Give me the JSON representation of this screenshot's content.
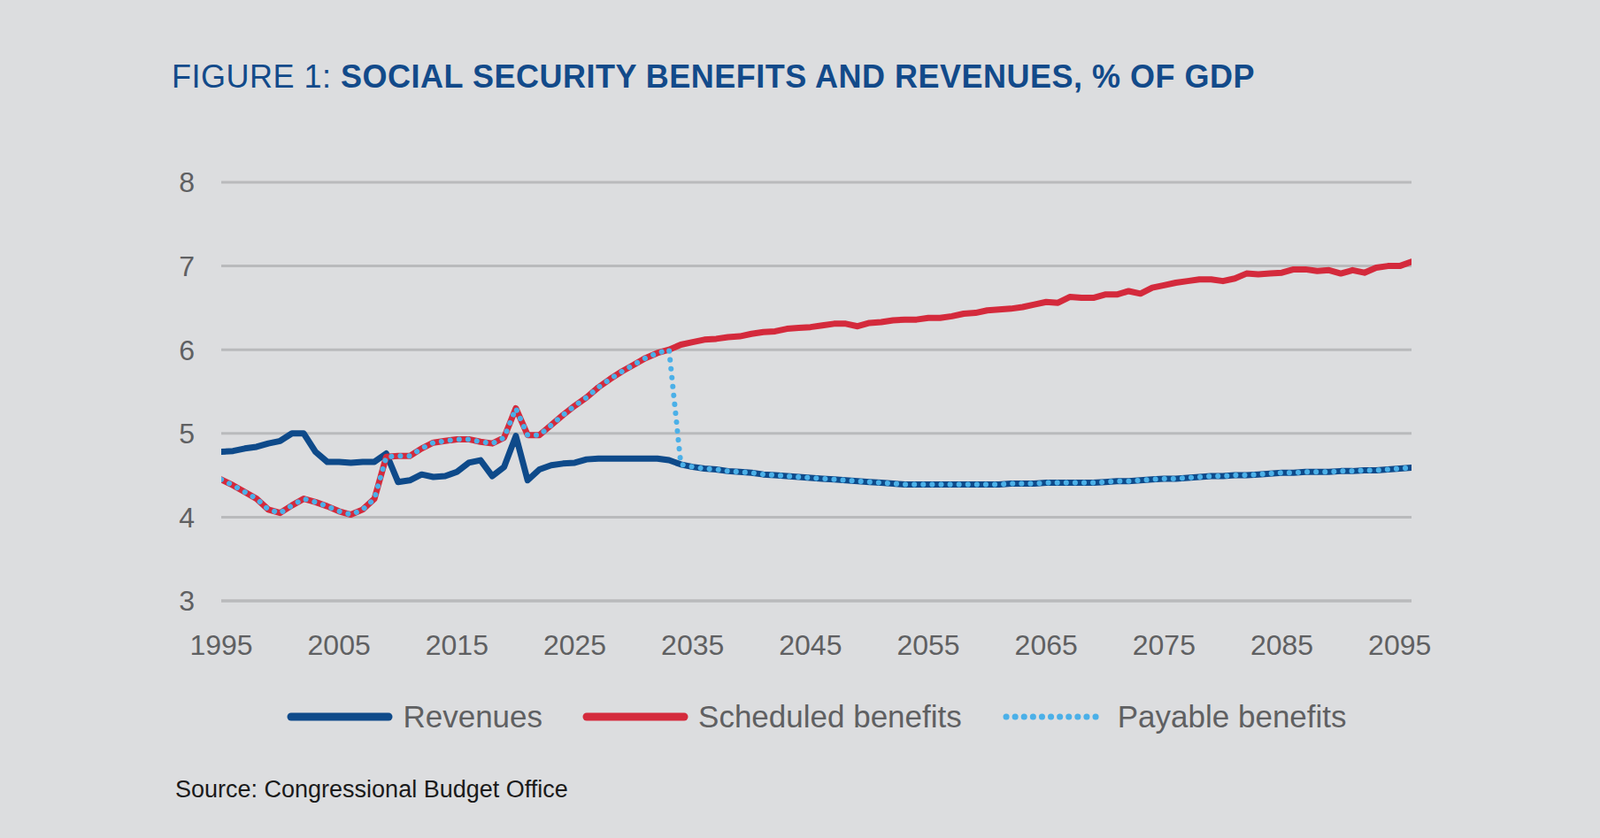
{
  "chart_data": {
    "type": "line",
    "title": "FIGURE 1: SOCIAL SECURITY BENEFITS AND REVENUES, % OF GDP",
    "source": "Source: Congressional Budget Office",
    "x": [
      1995,
      1996,
      1997,
      1998,
      1999,
      2000,
      2001,
      2002,
      2003,
      2004,
      2005,
      2006,
      2007,
      2008,
      2009,
      2010,
      2011,
      2012,
      2013,
      2014,
      2015,
      2016,
      2017,
      2018,
      2019,
      2020,
      2021,
      2022,
      2023,
      2024,
      2025,
      2026,
      2027,
      2028,
      2029,
      2030,
      2031,
      2032,
      2033,
      2034,
      2035,
      2036,
      2037,
      2038,
      2039,
      2040,
      2041,
      2042,
      2043,
      2044,
      2045,
      2046,
      2047,
      2048,
      2049,
      2050,
      2051,
      2052,
      2053,
      2054,
      2055,
      2056,
      2057,
      2058,
      2059,
      2060,
      2061,
      2062,
      2063,
      2064,
      2065,
      2066,
      2067,
      2068,
      2069,
      2070,
      2071,
      2072,
      2073,
      2074,
      2075,
      2076,
      2077,
      2078,
      2079,
      2080,
      2081,
      2082,
      2083,
      2084,
      2085,
      2086,
      2087,
      2088,
      2089,
      2090,
      2091,
      2092,
      2093,
      2094,
      2095,
      2096
    ],
    "series": [
      {
        "name": "Revenues",
        "color": "#0e4a8a",
        "line_style": "solid",
        "values": [
          4.78,
          4.79,
          4.82,
          4.84,
          4.88,
          4.91,
          5.0,
          5.0,
          4.78,
          4.66,
          4.66,
          4.65,
          4.66,
          4.66,
          4.76,
          4.42,
          4.44,
          4.51,
          4.48,
          4.49,
          4.54,
          4.65,
          4.68,
          4.49,
          4.6,
          4.97,
          4.44,
          4.57,
          4.62,
          4.64,
          4.65,
          4.69,
          4.7,
          4.7,
          4.7,
          4.7,
          4.7,
          4.7,
          4.68,
          4.63,
          4.6,
          4.58,
          4.57,
          4.55,
          4.54,
          4.53,
          4.51,
          4.5,
          4.49,
          4.48,
          4.47,
          4.46,
          4.45,
          4.44,
          4.43,
          4.42,
          4.41,
          4.4,
          4.39,
          4.39,
          4.39,
          4.39,
          4.39,
          4.39,
          4.39,
          4.39,
          4.39,
          4.4,
          4.4,
          4.4,
          4.41,
          4.41,
          4.41,
          4.41,
          4.41,
          4.42,
          4.43,
          4.43,
          4.44,
          4.45,
          4.46,
          4.46,
          4.47,
          4.48,
          4.49,
          4.49,
          4.5,
          4.5,
          4.51,
          4.52,
          4.53,
          4.53,
          4.54,
          4.54,
          4.54,
          4.55,
          4.55,
          4.56,
          4.56,
          4.57,
          4.58,
          4.59
        ]
      },
      {
        "name": "Scheduled benefits",
        "color": "#d42a3c",
        "line_style": "solid",
        "values": [
          4.45,
          4.38,
          4.3,
          4.22,
          4.09,
          4.05,
          4.14,
          4.22,
          4.18,
          4.13,
          4.07,
          4.03,
          4.09,
          4.22,
          4.72,
          4.73,
          4.73,
          4.82,
          4.89,
          4.91,
          4.93,
          4.93,
          4.9,
          4.88,
          4.95,
          5.3,
          4.98,
          4.98,
          5.1,
          5.22,
          5.33,
          5.43,
          5.55,
          5.65,
          5.74,
          5.82,
          5.9,
          5.96,
          6.0,
          6.06,
          6.09,
          6.12,
          6.13,
          6.15,
          6.16,
          6.19,
          6.21,
          6.22,
          6.25,
          6.26,
          6.27,
          6.29,
          6.31,
          6.31,
          6.28,
          6.32,
          6.33,
          6.35,
          6.36,
          6.36,
          6.38,
          6.38,
          6.4,
          6.43,
          6.44,
          6.47,
          6.48,
          6.49,
          6.51,
          6.54,
          6.57,
          6.56,
          6.63,
          6.62,
          6.62,
          6.66,
          6.66,
          6.7,
          6.67,
          6.74,
          6.77,
          6.8,
          6.82,
          6.84,
          6.84,
          6.82,
          6.85,
          6.91,
          6.9,
          6.91,
          6.92,
          6.96,
          6.96,
          6.94,
          6.95,
          6.91,
          6.95,
          6.92,
          6.98,
          7.0,
          7.0,
          7.05
        ]
      },
      {
        "name": "Payable benefits",
        "color": "#4bb0e8",
        "line_style": "dotted",
        "values": [
          4.45,
          4.38,
          4.3,
          4.22,
          4.09,
          4.05,
          4.14,
          4.22,
          4.18,
          4.13,
          4.07,
          4.03,
          4.09,
          4.22,
          4.72,
          4.73,
          4.73,
          4.82,
          4.89,
          4.91,
          4.93,
          4.93,
          4.9,
          4.88,
          4.95,
          5.3,
          4.98,
          4.98,
          5.1,
          5.22,
          5.33,
          5.43,
          5.55,
          5.65,
          5.74,
          5.82,
          5.9,
          5.96,
          6.0,
          4.63,
          4.6,
          4.58,
          4.57,
          4.55,
          4.54,
          4.53,
          4.51,
          4.5,
          4.49,
          4.48,
          4.47,
          4.46,
          4.45,
          4.44,
          4.43,
          4.42,
          4.41,
          4.4,
          4.39,
          4.39,
          4.39,
          4.39,
          4.39,
          4.39,
          4.39,
          4.39,
          4.39,
          4.4,
          4.4,
          4.4,
          4.41,
          4.41,
          4.41,
          4.41,
          4.41,
          4.42,
          4.43,
          4.43,
          4.44,
          4.45,
          4.46,
          4.46,
          4.47,
          4.48,
          4.49,
          4.49,
          4.5,
          4.5,
          4.51,
          4.52,
          4.53,
          4.53,
          4.54,
          4.54,
          4.54,
          4.55,
          4.55,
          4.56,
          4.56,
          4.57,
          4.58,
          4.59
        ]
      }
    ],
    "xlim": [
      1995,
      2096
    ],
    "xticks": [
      1995,
      2005,
      2015,
      2025,
      2035,
      2045,
      2055,
      2065,
      2075,
      2085,
      2095
    ],
    "ylim": [
      3,
      8
    ],
    "yticks": [
      3,
      4,
      5,
      6,
      7,
      8
    ],
    "grid": true,
    "legend": "bottom"
  }
}
